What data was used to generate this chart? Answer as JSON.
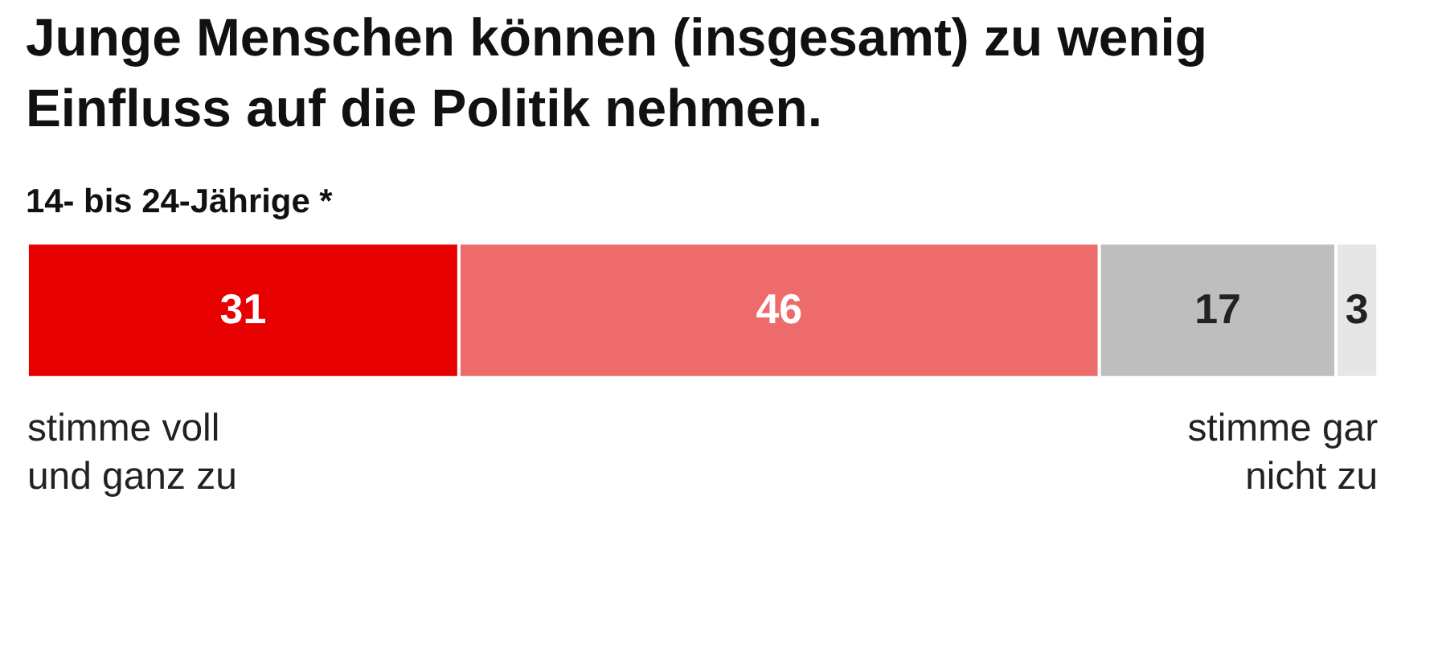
{
  "chart_data": {
    "type": "bar",
    "orientation": "horizontal",
    "stacked": true,
    "title": "Junge Menschen können (insgesamt) zu wenig Einfluss auf die Politik nehmen.",
    "subtitle": "14- bis 24-Jährige *",
    "categories": [
      null
    ],
    "series": [
      {
        "color": "#e60000",
        "values": [
          31
        ]
      },
      {
        "color": "#ee6b6b",
        "values": [
          46
        ]
      },
      {
        "color": "#bebebe",
        "values": [
          17
        ]
      },
      {
        "color": "#e6e6e6",
        "values": [
          3
        ]
      }
    ],
    "data_labels": true,
    "legend": false,
    "annotations": [
      "stimme voll\nund ganz zu",
      "stimme gar\nnicht zu"
    ]
  }
}
